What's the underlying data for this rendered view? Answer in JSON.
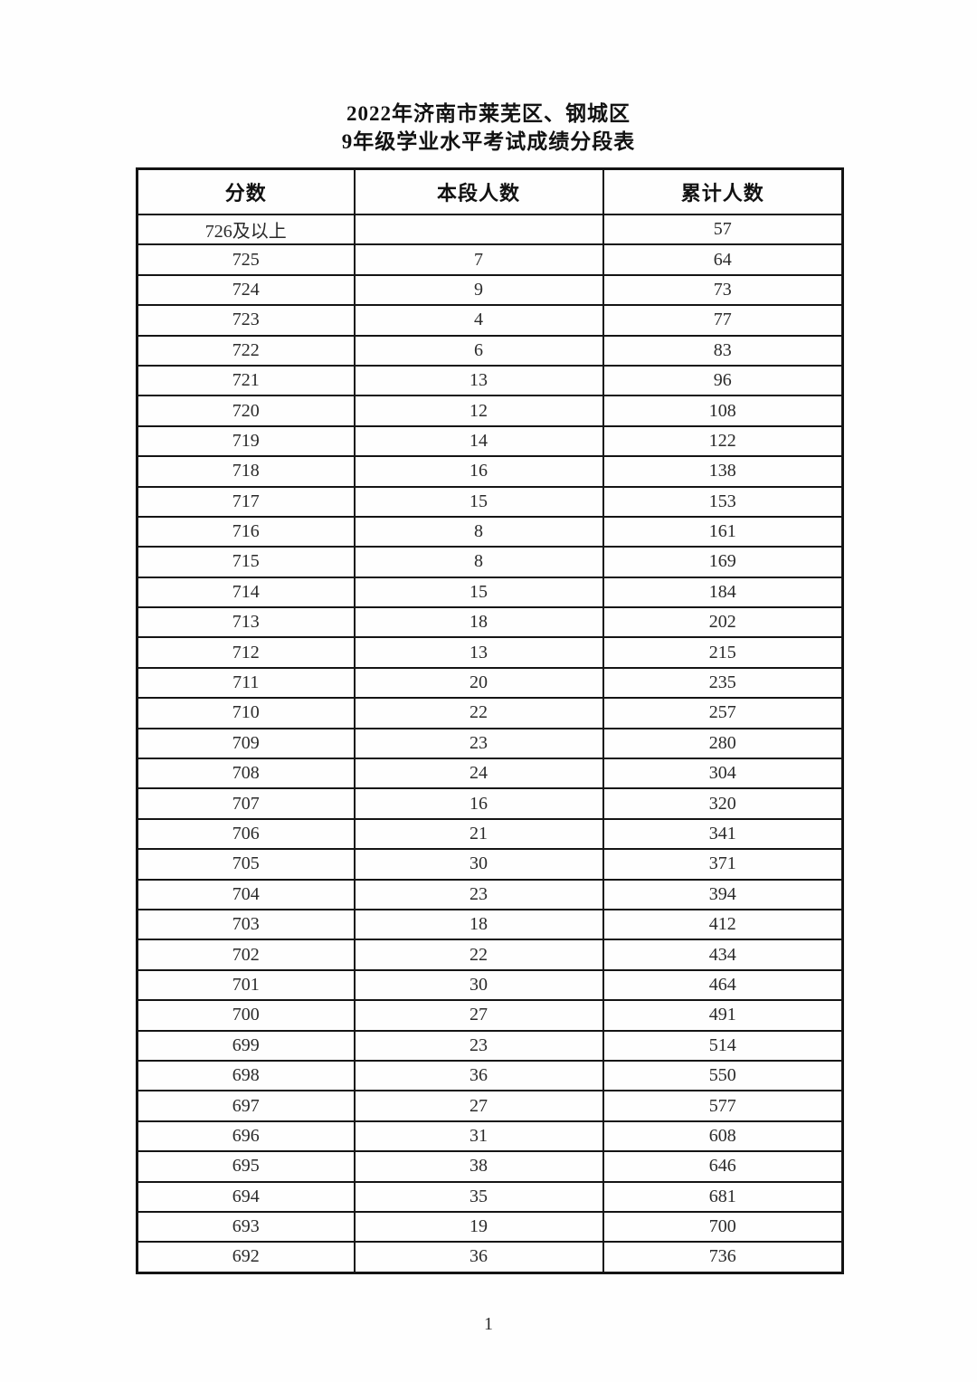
{
  "page": {
    "title_line1": "2022年济南市莱芜区、钢城区",
    "title_line2": "9年级学业水平考试成绩分段表",
    "page_number": "1"
  },
  "table": {
    "headers": [
      "分数",
      "本段人数",
      "累计人数"
    ],
    "rows": [
      [
        "726及以上",
        "",
        "57"
      ],
      [
        "725",
        "7",
        "64"
      ],
      [
        "724",
        "9",
        "73"
      ],
      [
        "723",
        "4",
        "77"
      ],
      [
        "722",
        "6",
        "83"
      ],
      [
        "721",
        "13",
        "96"
      ],
      [
        "720",
        "12",
        "108"
      ],
      [
        "719",
        "14",
        "122"
      ],
      [
        "718",
        "16",
        "138"
      ],
      [
        "717",
        "15",
        "153"
      ],
      [
        "716",
        "8",
        "161"
      ],
      [
        "715",
        "8",
        "169"
      ],
      [
        "714",
        "15",
        "184"
      ],
      [
        "713",
        "18",
        "202"
      ],
      [
        "712",
        "13",
        "215"
      ],
      [
        "711",
        "20",
        "235"
      ],
      [
        "710",
        "22",
        "257"
      ],
      [
        "709",
        "23",
        "280"
      ],
      [
        "708",
        "24",
        "304"
      ],
      [
        "707",
        "16",
        "320"
      ],
      [
        "706",
        "21",
        "341"
      ],
      [
        "705",
        "30",
        "371"
      ],
      [
        "704",
        "23",
        "394"
      ],
      [
        "703",
        "18",
        "412"
      ],
      [
        "702",
        "22",
        "434"
      ],
      [
        "701",
        "30",
        "464"
      ],
      [
        "700",
        "27",
        "491"
      ],
      [
        "699",
        "23",
        "514"
      ],
      [
        "698",
        "36",
        "550"
      ],
      [
        "697",
        "27",
        "577"
      ],
      [
        "696",
        "31",
        "608"
      ],
      [
        "695",
        "38",
        "646"
      ],
      [
        "694",
        "35",
        "681"
      ],
      [
        "693",
        "19",
        "700"
      ],
      [
        "692",
        "36",
        "736"
      ]
    ]
  },
  "colors": {
    "border": "#141414",
    "text": "#2a2a2a",
    "background": "#fefefe"
  }
}
